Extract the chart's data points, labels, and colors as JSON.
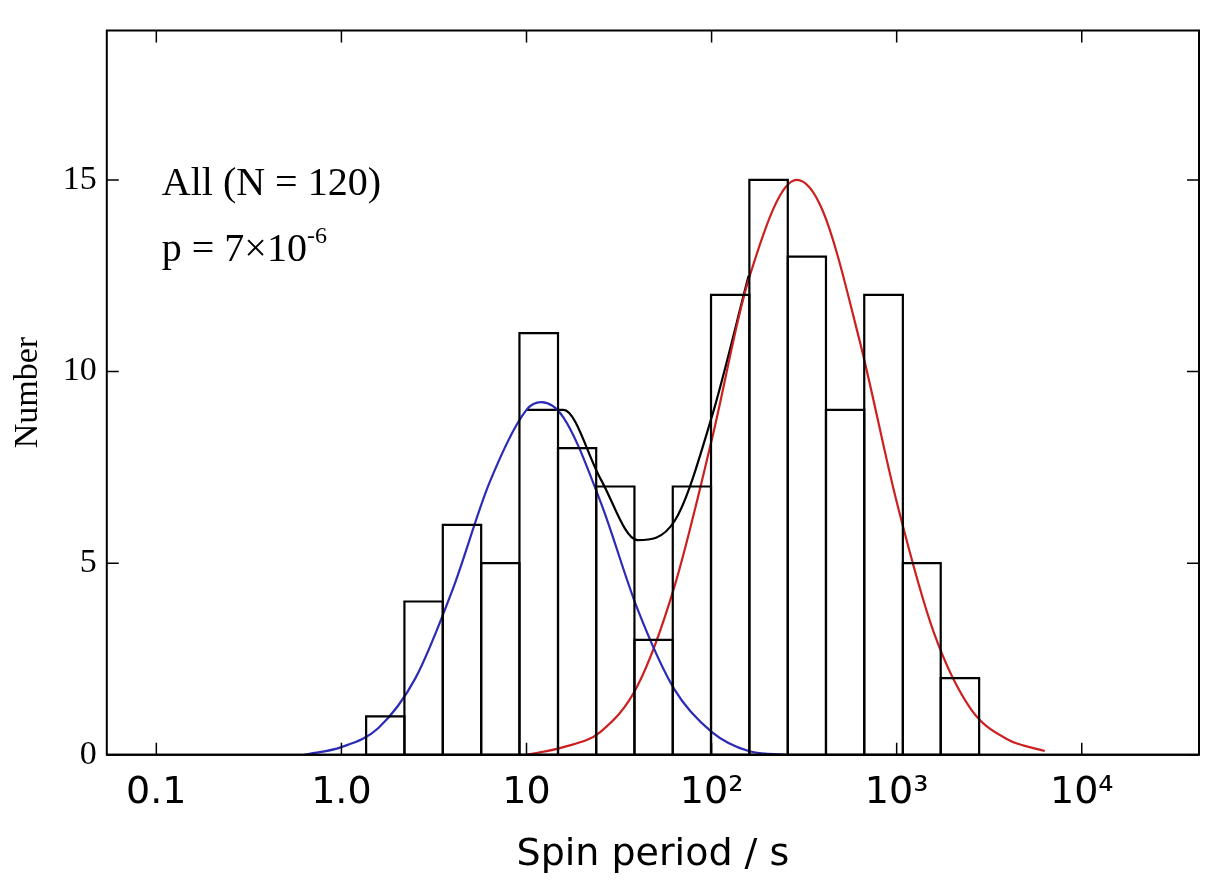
{
  "chart_data": {
    "type": "histogram",
    "xlabel": "Spin period / s",
    "ylabel": "Number",
    "annotations": [
      "All (N = 120)",
      "p = 7×10$^{-6}$"
    ],
    "bins": [
      1.36,
      2.19,
      3.53,
      5.69,
      9.16,
      14.8,
      23.8,
      38.3,
      61.7,
      99.3,
      160,
      258,
      415,
      668,
      1080,
      1730,
      2790
    ],
    "values": [
      1,
      4,
      6,
      5,
      11,
      8,
      7,
      3,
      7,
      12,
      15,
      13,
      9,
      12,
      5,
      2
    ],
    "color": "#000000",
    "series": [
      {
        "type": "line",
        "color": "#2b2bb8",
        "x": [
          0.631,
          1,
          1.585,
          2.512,
          3.981,
          6.31,
          10,
          12.02,
          15.85,
          25.12,
          39.81,
          63.1,
          100,
          158.5,
          251.2
        ],
        "values": [
          0.0,
          0.2,
          0.7,
          2.0,
          4.3,
          7.1,
          9.0,
          9.2,
          8.8,
          6.6,
          3.8,
          1.7,
          0.6,
          0.1,
          0.0
        ]
      },
      {
        "type": "line",
        "color": "#cc2020",
        "x": [
          10,
          15.85,
          25.12,
          39.81,
          63.1,
          100,
          158.5,
          288.4,
          398.1,
          631,
          1000,
          1585,
          2512,
          3981,
          6310
        ],
        "values": [
          0.0,
          0.2,
          0.6,
          1.8,
          4.4,
          8.2,
          12.4,
          15.0,
          14.2,
          10.8,
          6.6,
          3.2,
          1.2,
          0.4,
          0.1
        ]
      },
      {
        "type": "line",
        "color": "#000000",
        "x": [
          10,
          15.85,
          25.12,
          39.81,
          63.1,
          100,
          158.5
        ],
        "values": [
          9.0,
          9.0,
          7.2,
          5.6,
          6.1,
          8.8,
          12.5
        ]
      }
    ],
    "log": "x",
    "xlim": [
      0.054,
      43000
    ],
    "xticks": [
      0.1,
      {
        "value": 1,
        "label": "1.0"
      },
      10,
      {
        "value": 100,
        "label": "10²"
      },
      {
        "value": 1000,
        "label": "10³"
      },
      {
        "value": 10000,
        "label": "10⁴"
      }
    ],
    "ylim": [
      0,
      18.9
    ],
    "yticks": [
      0,
      5,
      10,
      15
    ],
    "grid": false,
    "legend": false
  }
}
